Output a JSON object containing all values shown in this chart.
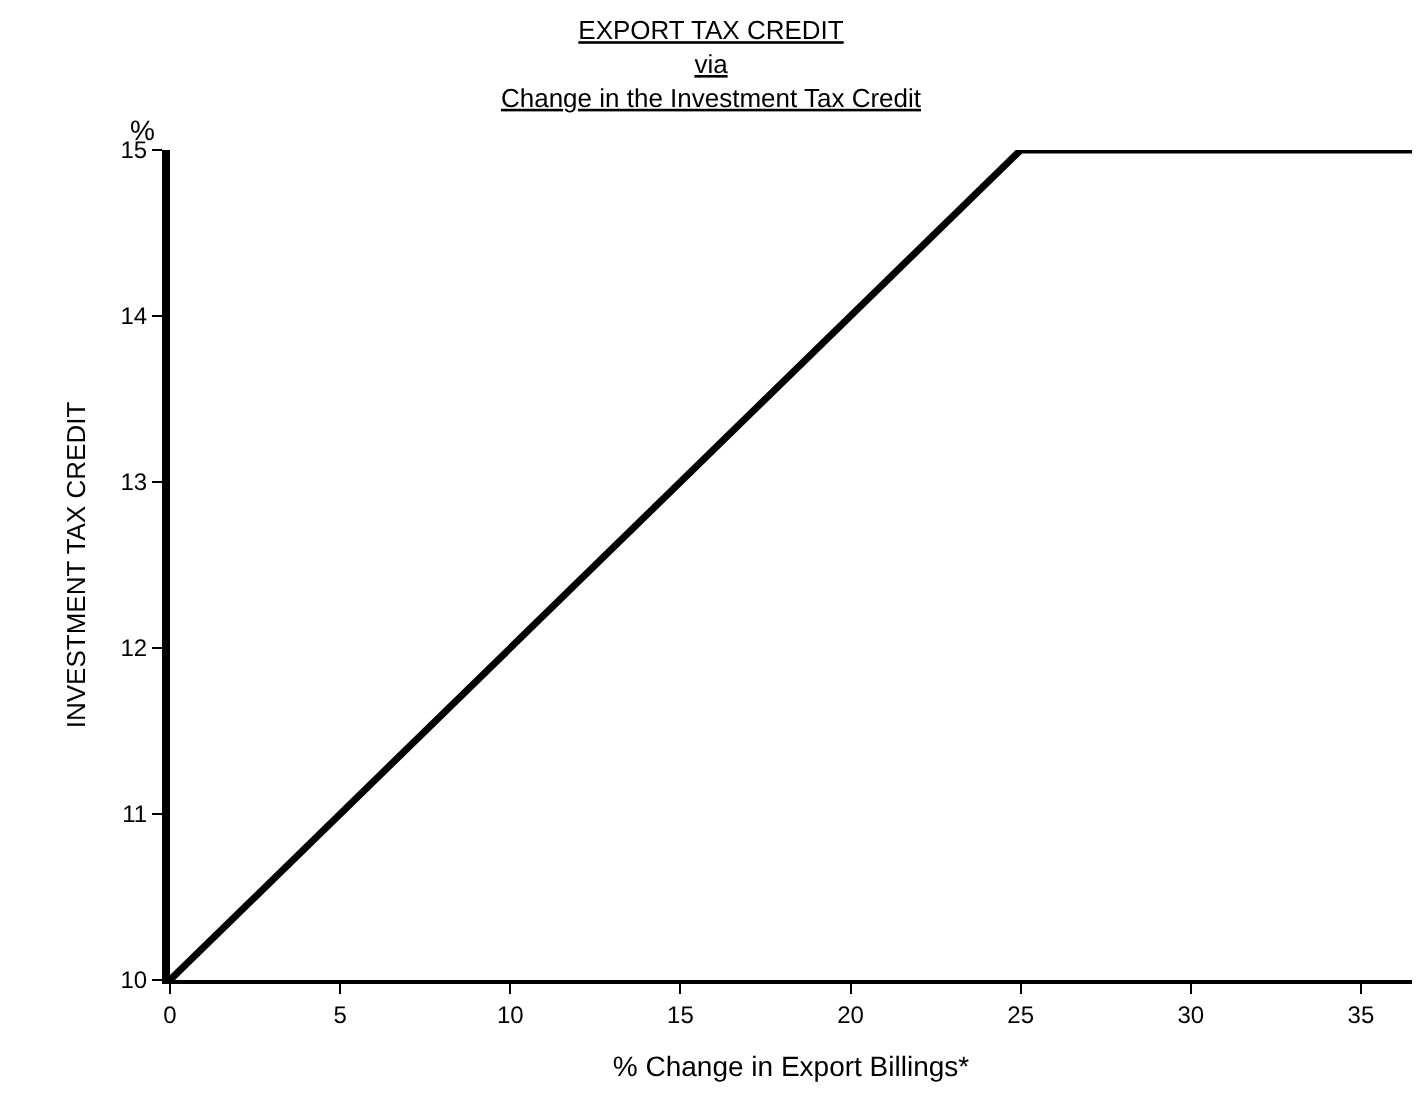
{
  "chart_data": {
    "type": "line",
    "title": "EXPORT TAX CREDIT\nvia\nChange in the Investment Tax Credit",
    "xlabel": "% Change in Export Billings*",
    "ylabel": "INVESTMENT TAX CREDIT",
    "annotations": [
      "%"
    ],
    "x": [
      0,
      25,
      36.5
    ],
    "series": [
      {
        "color": "#000000",
        "values": [
          10,
          15,
          15
        ]
      }
    ],
    "xlim": [
      0,
      36.5
    ],
    "xticks": [
      0,
      5,
      10,
      15,
      20,
      25,
      30,
      35
    ],
    "ylim": [
      10,
      15
    ],
    "yticks": [
      10,
      11,
      12,
      13,
      14,
      15
    ],
    "marker": "none",
    "line_style": "solid"
  }
}
